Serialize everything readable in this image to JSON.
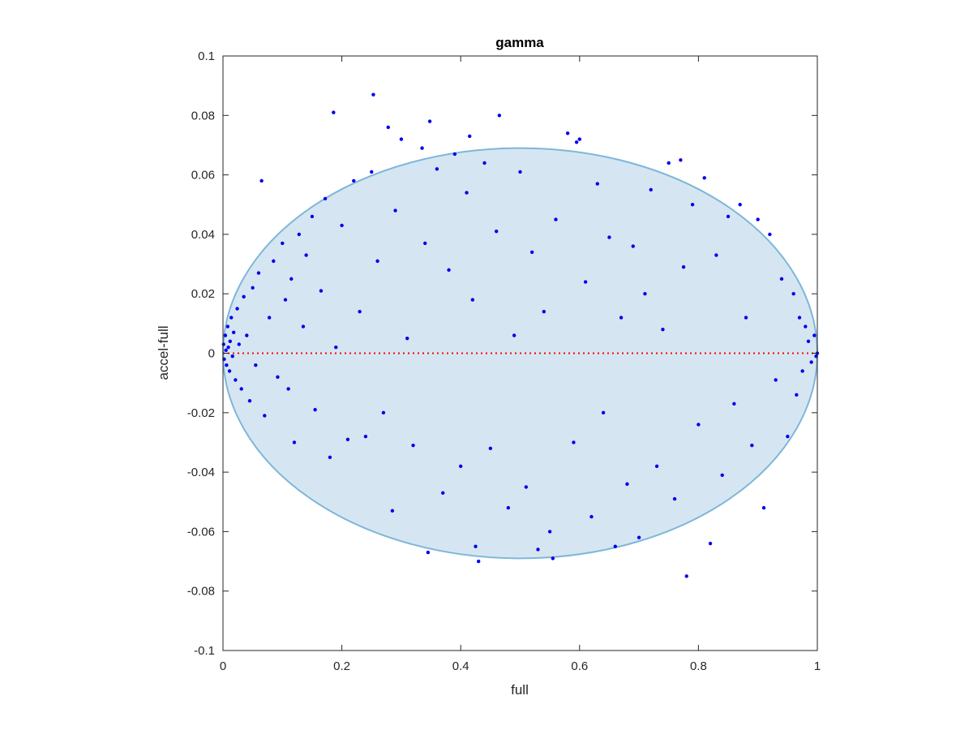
{
  "chart_data": {
    "type": "scatter",
    "title": "gamma",
    "xlabel": "full",
    "ylabel": "accel-full",
    "xlim": [
      0,
      1
    ],
    "ylim": [
      -0.1,
      0.1
    ],
    "xticks": [
      0,
      0.2,
      0.4,
      0.6,
      0.8,
      1
    ],
    "xtick_labels": [
      "0",
      "0.2",
      "0.4",
      "0.6",
      "0.8",
      "1"
    ],
    "yticks": [
      -0.1,
      -0.08,
      -0.06,
      -0.04,
      -0.02,
      0,
      0.02,
      0.04,
      0.06,
      0.08,
      0.1
    ],
    "ytick_labels": [
      "-0.1",
      "-0.08",
      "-0.06",
      "-0.04",
      "-0.02",
      "0",
      "0.02",
      "0.04",
      "0.06",
      "0.08",
      "0.1"
    ],
    "grid": false,
    "reference_line": {
      "y": 0,
      "style": "dotted",
      "color": "#ff0000"
    },
    "envelope": {
      "shape": "ellipse",
      "center": [
        0.5,
        0.0
      ],
      "radius_x": 0.5,
      "radius_y": 0.069,
      "fill": "#d5e6f2",
      "stroke": "#7fb6d9"
    },
    "series": [
      {
        "marker_color": "#0000ee",
        "points": [
          [
            0.001,
            0.003
          ],
          [
            0.002,
            -0.002
          ],
          [
            0.004,
            0.006
          ],
          [
            0.005,
            0.001
          ],
          [
            0.006,
            -0.004
          ],
          [
            0.008,
            0.009
          ],
          [
            0.009,
            0.002
          ],
          [
            0.011,
            -0.006
          ],
          [
            0.012,
            0.004
          ],
          [
            0.014,
            0.012
          ],
          [
            0.016,
            -0.001
          ],
          [
            0.018,
            0.007
          ],
          [
            0.021,
            -0.009
          ],
          [
            0.024,
            0.015
          ],
          [
            0.027,
            0.003
          ],
          [
            0.031,
            -0.012
          ],
          [
            0.035,
            0.019
          ],
          [
            0.04,
            0.006
          ],
          [
            0.045,
            -0.016
          ],
          [
            0.05,
            0.022
          ],
          [
            0.055,
            -0.004
          ],
          [
            0.06,
            0.027
          ],
          [
            0.065,
            0.058
          ],
          [
            0.07,
            -0.021
          ],
          [
            0.078,
            0.012
          ],
          [
            0.085,
            0.031
          ],
          [
            0.092,
            -0.008
          ],
          [
            0.1,
            0.037
          ],
          [
            0.105,
            0.018
          ],
          [
            0.11,
            -0.012
          ],
          [
            0.115,
            0.025
          ],
          [
            0.12,
            -0.03
          ],
          [
            0.128,
            0.04
          ],
          [
            0.135,
            0.009
          ],
          [
            0.14,
            0.033
          ],
          [
            0.15,
            0.046
          ],
          [
            0.155,
            -0.019
          ],
          [
            0.165,
            0.021
          ],
          [
            0.172,
            0.052
          ],
          [
            0.18,
            -0.035
          ],
          [
            0.186,
            0.081
          ],
          [
            0.19,
            0.002
          ],
          [
            0.2,
            0.043
          ],
          [
            0.21,
            -0.029
          ],
          [
            0.22,
            0.058
          ],
          [
            0.23,
            0.014
          ],
          [
            0.24,
            -0.028
          ],
          [
            0.25,
            0.061
          ],
          [
            0.253,
            0.087
          ],
          [
            0.26,
            0.031
          ],
          [
            0.27,
            -0.02
          ],
          [
            0.278,
            0.076
          ],
          [
            0.285,
            -0.053
          ],
          [
            0.29,
            0.048
          ],
          [
            0.3,
            0.072
          ],
          [
            0.31,
            0.005
          ],
          [
            0.32,
            -0.031
          ],
          [
            0.335,
            0.069
          ],
          [
            0.34,
            0.037
          ],
          [
            0.345,
            -0.067
          ],
          [
            0.348,
            0.078
          ],
          [
            0.36,
            0.062
          ],
          [
            0.37,
            -0.047
          ],
          [
            0.38,
            0.028
          ],
          [
            0.39,
            0.067
          ],
          [
            0.4,
            -0.038
          ],
          [
            0.41,
            0.054
          ],
          [
            0.415,
            0.073
          ],
          [
            0.42,
            0.018
          ],
          [
            0.425,
            -0.065
          ],
          [
            0.43,
            -0.07
          ],
          [
            0.44,
            0.064
          ],
          [
            0.45,
            -0.032
          ],
          [
            0.46,
            0.041
          ],
          [
            0.465,
            0.08
          ],
          [
            0.48,
            -0.052
          ],
          [
            0.49,
            0.006
          ],
          [
            0.5,
            0.061
          ],
          [
            0.51,
            -0.045
          ],
          [
            0.52,
            0.034
          ],
          [
            0.53,
            -0.066
          ],
          [
            0.54,
            0.014
          ],
          [
            0.55,
            -0.06
          ],
          [
            0.555,
            -0.069
          ],
          [
            0.56,
            0.045
          ],
          [
            0.58,
            0.074
          ],
          [
            0.59,
            -0.03
          ],
          [
            0.595,
            0.071
          ],
          [
            0.6,
            0.072
          ],
          [
            0.61,
            0.024
          ],
          [
            0.62,
            -0.055
          ],
          [
            0.63,
            0.057
          ],
          [
            0.64,
            -0.02
          ],
          [
            0.65,
            0.039
          ],
          [
            0.66,
            -0.065
          ],
          [
            0.67,
            0.012
          ],
          [
            0.68,
            -0.044
          ],
          [
            0.69,
            0.036
          ],
          [
            0.7,
            -0.062
          ],
          [
            0.71,
            0.02
          ],
          [
            0.72,
            0.055
          ],
          [
            0.73,
            -0.038
          ],
          [
            0.74,
            0.008
          ],
          [
            0.75,
            0.064
          ],
          [
            0.76,
            -0.049
          ],
          [
            0.77,
            0.065
          ],
          [
            0.775,
            0.029
          ],
          [
            0.78,
            -0.075
          ],
          [
            0.79,
            0.05
          ],
          [
            0.8,
            -0.024
          ],
          [
            0.81,
            0.059
          ],
          [
            0.82,
            -0.064
          ],
          [
            0.83,
            0.033
          ],
          [
            0.84,
            -0.041
          ],
          [
            0.85,
            0.046
          ],
          [
            0.86,
            -0.017
          ],
          [
            0.87,
            0.05
          ],
          [
            0.88,
            0.012
          ],
          [
            0.89,
            -0.031
          ],
          [
            0.9,
            0.045
          ],
          [
            0.91,
            -0.052
          ],
          [
            0.92,
            0.04
          ],
          [
            0.93,
            -0.009
          ],
          [
            0.94,
            0.025
          ],
          [
            0.95,
            -0.028
          ],
          [
            0.96,
            0.02
          ],
          [
            0.965,
            -0.014
          ],
          [
            0.97,
            0.012
          ],
          [
            0.975,
            -0.006
          ],
          [
            0.98,
            0.009
          ],
          [
            0.985,
            0.004
          ],
          [
            0.99,
            -0.003
          ],
          [
            0.995,
            0.006
          ],
          [
            0.998,
            -0.001
          ],
          [
            1.0,
            0.0
          ]
        ]
      }
    ]
  }
}
